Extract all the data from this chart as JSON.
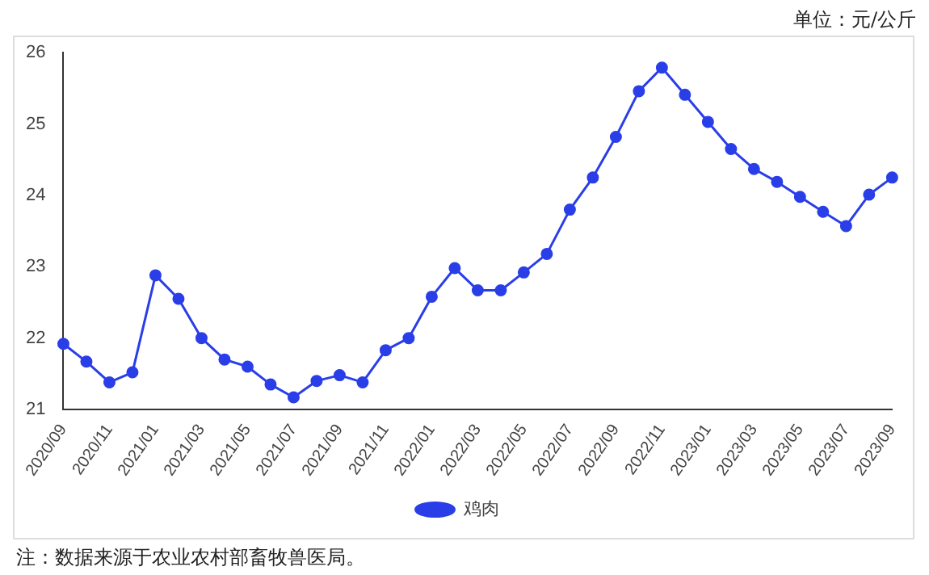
{
  "chart_data": {
    "type": "line",
    "categories": [
      "2020/09",
      null,
      "2020/11",
      null,
      "2021/01",
      null,
      "2021/03",
      null,
      "2021/05",
      null,
      "2021/07",
      null,
      "2021/09",
      null,
      "2021/11",
      null,
      "2022/01",
      null,
      "2022/03",
      null,
      "2022/05",
      null,
      "2022/07",
      null,
      "2022/09",
      null,
      "2022/11",
      null,
      "2023/01",
      null,
      "2023/03",
      null,
      "2023/05",
      null,
      "2023/07",
      null,
      "2023/09"
    ],
    "series": [
      {
        "name": "鸡肉",
        "color": "#2a3ee8",
        "values": [
          21.92,
          21.67,
          21.38,
          21.52,
          22.88,
          22.55,
          22.0,
          21.7,
          21.6,
          21.35,
          21.17,
          21.4,
          21.48,
          21.38,
          21.83,
          22.0,
          22.58,
          22.98,
          22.67,
          22.67,
          22.92,
          23.18,
          23.8,
          24.25,
          24.82,
          25.46,
          25.79,
          25.41,
          25.03,
          24.65,
          24.37,
          24.19,
          23.98,
          23.77,
          23.57,
          24.01,
          24.25
        ]
      }
    ],
    "ylim": [
      21,
      26
    ],
    "yticks": [
      21,
      22,
      23,
      24,
      25,
      26
    ],
    "grid": false,
    "legend": "bottom",
    "marker": "circle",
    "line_style": "solid",
    "annotations": [
      "单位：元/公斤",
      "注：数据来源于农业农村部畜牧兽医局。"
    ]
  }
}
